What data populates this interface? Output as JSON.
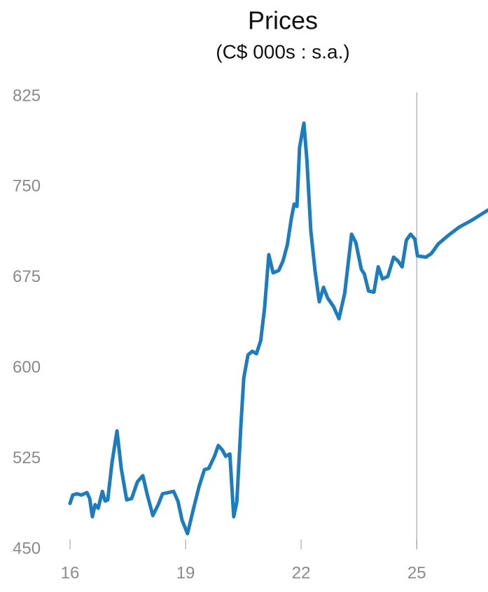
{
  "chart_data": {
    "type": "line",
    "title": "Prices",
    "subtitle": "(C$ 000s : s.a.)",
    "color": "#1a7cc1",
    "x": [
      16,
      16.07,
      16.18,
      16.29,
      16.44,
      16.51,
      16.58,
      16.65,
      16.73,
      16.84,
      16.91,
      16.98,
      17.09,
      17.22,
      17.33,
      17.47,
      17.6,
      17.75,
      17.89,
      18,
      18.15,
      18.29,
      18.4,
      18.55,
      18.69,
      18.8,
      18.91,
      19.05,
      19.2,
      19.35,
      19.49,
      19.6,
      19.75,
      19.85,
      19.96,
      20.04,
      20.15,
      20.25,
      20.33,
      20.44,
      20.51,
      20.62,
      20.73,
      20.84,
      20.95,
      21.05,
      21.16,
      21.27,
      21.42,
      21.53,
      21.64,
      21.75,
      21.82,
      21.89,
      21.96,
      22.07,
      22.15,
      22.25,
      22.36,
      22.47,
      22.58,
      22.69,
      22.84,
      22.98,
      23.13,
      23.31,
      23.42,
      23.56,
      23.64,
      23.75,
      23.89,
      24,
      24.11,
      24.25,
      24.4,
      24.51,
      24.62,
      24.73,
      24.84,
      24.95,
      25.02,
      25.24,
      25.38,
      25.56,
      25.82,
      26.11,
      26.4,
      26.85
    ],
    "values": [
      488,
      495,
      496,
      495,
      497,
      492,
      477,
      487,
      484,
      498,
      490,
      491,
      522,
      548,
      517,
      491,
      492,
      506,
      511,
      496,
      478,
      487,
      496,
      497,
      498,
      490,
      474,
      463,
      483,
      502,
      516,
      517,
      527,
      536,
      532,
      527,
      529,
      477,
      489,
      555,
      592,
      611,
      614,
      612,
      623,
      650,
      694,
      679,
      681,
      689,
      702,
      725,
      736,
      734,
      783,
      803,
      772,
      714,
      681,
      655,
      667,
      658,
      651,
      641,
      662,
      711,
      704,
      682,
      678,
      664,
      663,
      684,
      674,
      676,
      692,
      689,
      684,
      706,
      711,
      707,
      693,
      692,
      695,
      703,
      710,
      717,
      722,
      731
    ],
    "xlim": [
      16,
      26.85
    ],
    "xticks": [
      16,
      19,
      22,
      25
    ],
    "ylim": [
      450,
      825
    ],
    "yticks": [
      450,
      525,
      600,
      675,
      750,
      825
    ],
    "vline": 25
  }
}
